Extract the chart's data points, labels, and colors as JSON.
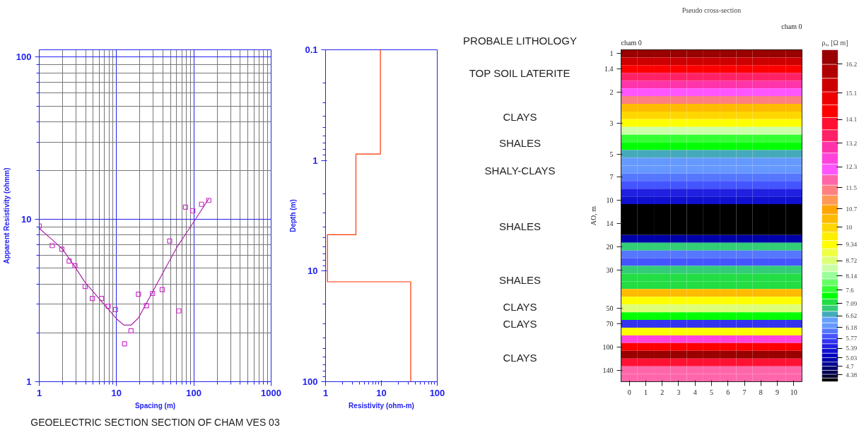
{
  "chart_data": [
    {
      "type": "scatter",
      "xlabel": "Spacing (m)",
      "ylabel": "Apparent Resistivity (ohmm)",
      "log": "xy",
      "xlim": [
        1,
        1000
      ],
      "ylim": [
        1,
        111
      ],
      "xticks": [
        1,
        10,
        100,
        1000
      ],
      "yticks": [
        1,
        10,
        100
      ],
      "grid": true,
      "annotations": [
        "GEOELECTRIC SECTION SECTION OF CHAM VES 03"
      ],
      "series": [
        {
          "type": "scatter",
          "marker": "square",
          "color": "#cc33cc",
          "x": [
            1,
            1.47,
            1.96,
            2.44,
            2.9,
            3.93,
            4.86,
            6.4,
            7.8,
            9.7,
            12.7,
            15.4,
            19.2,
            24.4,
            29.2,
            39,
            48.7,
            64,
            78,
            97,
            126,
            156
          ],
          "values": [
            9.1,
            6.9,
            6.56,
            5.54,
            5.18,
            3.86,
            3.26,
            3.26,
            2.92,
            2.78,
            1.71,
            2.06,
            3.46,
            2.94,
            3.5,
            3.69,
            7.35,
            2.73,
            11.9,
            11.3,
            12.4,
            13.1
          ]
        },
        {
          "type": "line",
          "color": "#aa22aa",
          "x": [
            1,
            1.47,
            2,
            2.9,
            3.9,
            10,
            12.5,
            15.4,
            19.2,
            36.5,
            60,
            78,
            99,
            156
          ],
          "values": [
            8.8,
            7.5,
            6.56,
            5.1,
            4.1,
            2.44,
            2.23,
            2.23,
            2.47,
            4.34,
            6.7,
            8.1,
            9.6,
            13.4
          ]
        }
      ]
    },
    {
      "type": "line",
      "xlabel": "Resistivity (ohm-m)",
      "ylabel": "Depth (m)",
      "log": "xy",
      "xlim": [
        1,
        100
      ],
      "ylim": [
        100,
        0.1
      ],
      "xticks": [
        1,
        10,
        100
      ],
      "yticks": [
        0.1,
        1,
        10,
        100
      ],
      "series": [
        {
          "color": "#ff3300",
          "x": [
            9.6,
            9.6,
            3.5,
            3.5,
            1.08,
            1.08,
            33.5,
            33.5
          ],
          "values": [
            0.1,
            0.875,
            0.875,
            4.7,
            4.7,
            12.5,
            12.5,
            100
          ]
        }
      ]
    },
    {
      "type": "heatmap",
      "title": "Pseudo cross-section",
      "ylabel": "AO, m",
      "clabel": "ρₐ, [Ω m]",
      "annotations": [
        "cham 0",
        "cham 0",
        "PROBALE LITHOLOGY",
        "TOP SOIL LATERITE",
        "CLAYS",
        "SHALES",
        "SHALY-CLAYS",
        "SHALES",
        "SHALES",
        "CLAYS",
        "CLAYS",
        "CLAYS"
      ],
      "categories": [
        "0",
        "1",
        "2",
        "3",
        "4",
        "5",
        "6",
        "7",
        "8",
        "9",
        "10"
      ],
      "y_categories": [
        "1",
        null,
        "1.4",
        null,
        null,
        "2",
        null,
        null,
        null,
        "3",
        null,
        null,
        null,
        "5",
        null,
        null,
        "7",
        null,
        null,
        "10",
        null,
        null,
        "14",
        null,
        null,
        "20",
        null,
        null,
        "30",
        null,
        null,
        null,
        null,
        "50",
        null,
        "70",
        null,
        null,
        "100",
        null,
        null,
        "140",
        null
      ],
      "cells": [
        [
          16.49,
          16.49,
          16.49,
          16.49,
          16.49,
          16.49,
          16.49,
          16.49,
          16.49,
          16.49,
          16.49
        ],
        [
          15.42,
          15.42,
          15.42,
          15.42,
          15.42,
          15.42,
          15.42,
          15.42,
          15.42,
          15.42,
          15.42
        ],
        [
          14.43,
          14.43,
          14.43,
          14.43,
          14.43,
          14.43,
          14.43,
          14.43,
          14.43,
          14.43,
          14.43
        ],
        [
          13.5,
          13.5,
          13.5,
          13.5,
          13.5,
          13.5,
          13.5,
          13.5,
          13.5,
          13.5,
          13.5
        ],
        [
          13.05,
          13.05,
          13.05,
          13.05,
          13.05,
          13.05,
          13.05,
          13.05,
          13.05,
          13.05,
          13.05
        ],
        [
          12.21,
          12.21,
          12.21,
          12.21,
          12.21,
          12.21,
          12.21,
          12.21,
          12.21,
          12.21,
          12.21
        ],
        [
          11.42,
          11.42,
          11.42,
          11.42,
          11.42,
          11.42,
          11.42,
          11.42,
          11.42,
          11.42,
          11.42
        ],
        [
          10.33,
          10.33,
          10.33,
          10.33,
          10.33,
          10.33,
          10.33,
          10.33,
          10.33,
          10.33,
          10.33
        ],
        [
          9.99,
          9.99,
          9.99,
          9.99,
          9.99,
          9.99,
          9.99,
          9.99,
          9.99,
          9.99,
          9.99
        ],
        [
          9.34,
          9.34,
          9.34,
          9.34,
          9.34,
          9.34,
          9.34,
          9.34,
          9.34,
          9.34,
          9.34
        ],
        [
          8.45,
          8.45,
          8.45,
          8.45,
          8.45,
          8.45,
          8.45,
          8.45,
          8.45,
          8.45,
          8.45
        ],
        [
          7.65,
          7.65,
          7.65,
          7.65,
          7.65,
          7.65,
          7.65,
          7.65,
          7.65,
          7.65,
          7.65
        ],
        [
          7.39,
          7.39,
          7.39,
          7.39,
          7.39,
          7.39,
          7.39,
          7.39,
          7.39,
          7.39,
          7.39
        ],
        [
          6.69,
          6.69,
          6.69,
          6.69,
          6.69,
          6.69,
          6.69,
          6.69,
          6.69,
          6.69,
          6.69
        ],
        [
          6.26,
          6.26,
          6.26,
          6.26,
          6.26,
          6.26,
          6.26,
          6.26,
          6.26,
          6.26,
          6.26
        ],
        [
          6.26,
          6.26,
          6.26,
          6.26,
          6.26,
          6.26,
          6.26,
          6.26,
          6.26,
          6.26,
          6.26
        ],
        [
          6.05,
          6.05,
          6.05,
          6.05,
          6.05,
          6.05,
          6.05,
          6.05,
          6.05,
          6.05,
          6.05
        ],
        [
          5.85,
          5.85,
          5.85,
          5.85,
          5.85,
          5.85,
          5.85,
          5.85,
          5.85,
          5.85,
          5.85
        ],
        [
          5.47,
          5.47,
          5.47,
          5.47,
          5.47,
          5.47,
          5.47,
          5.47,
          5.47,
          5.47,
          5.47
        ],
        [
          5.29,
          5.29,
          5.29,
          5.29,
          5.29,
          5.29,
          5.29,
          5.29,
          5.29,
          5.29,
          5.29
        ],
        [
          4.19,
          4.19,
          4.19,
          4.19,
          4.19,
          4.19,
          4.19,
          4.19,
          4.19,
          4.19,
          4.19
        ],
        [
          4.19,
          4.19,
          4.19,
          4.19,
          4.19,
          4.19,
          4.19,
          4.19,
          4.19,
          4.19,
          4.19
        ],
        [
          4.19,
          4.19,
          4.19,
          4.19,
          4.19,
          4.19,
          4.19,
          4.19,
          4.19,
          4.19,
          4.19
        ],
        [
          4.19,
          4.19,
          4.19,
          4.19,
          4.19,
          4.19,
          4.19,
          4.19,
          4.19,
          4.19,
          4.19
        ],
        [
          4.95,
          4.95,
          4.95,
          4.95,
          4.95,
          4.95,
          4.95,
          4.95,
          4.95,
          4.95,
          4.95
        ],
        [
          6.92,
          6.92,
          6.92,
          6.92,
          6.92,
          6.92,
          6.92,
          6.92,
          6.92,
          6.92,
          6.92
        ],
        [
          6.05,
          6.05,
          6.05,
          6.05,
          6.05,
          6.05,
          6.05,
          6.05,
          6.05,
          6.05,
          6.05
        ],
        [
          5.85,
          5.85,
          5.85,
          5.85,
          5.85,
          5.85,
          5.85,
          5.85,
          5.85,
          5.85,
          5.85
        ],
        [
          6.92,
          6.92,
          6.92,
          6.92,
          6.92,
          6.92,
          6.92,
          6.92,
          6.92,
          6.92,
          6.92
        ],
        [
          7.15,
          7.15,
          7.15,
          7.15,
          7.15,
          7.15,
          7.15,
          7.15,
          7.15,
          7.15,
          7.15
        ],
        [
          7.15,
          7.15,
          7.15,
          7.15,
          7.15,
          7.15,
          7.15,
          7.15,
          7.15,
          7.15,
          7.15
        ],
        [
          10.33,
          10.33,
          10.33,
          10.33,
          10.33,
          10.33,
          10.33,
          10.33,
          10.33,
          10.33,
          10.33
        ],
        [
          9.34,
          9.34,
          9.34,
          9.34,
          9.34,
          9.34,
          9.34,
          9.34,
          9.34,
          9.34,
          9.34
        ],
        [
          8.74,
          8.74,
          8.74,
          8.74,
          8.74,
          8.74,
          8.74,
          8.74,
          8.74,
          8.74,
          8.74
        ],
        [
          7.39,
          7.39,
          7.39,
          7.39,
          7.39,
          7.39,
          7.39,
          7.39,
          7.39,
          7.39,
          7.39
        ],
        [
          5.66,
          5.66,
          5.66,
          5.66,
          5.66,
          5.66,
          5.66,
          5.66,
          5.66,
          5.66,
          5.66
        ],
        [
          9.34,
          9.34,
          9.34,
          9.34,
          9.34,
          9.34,
          9.34,
          9.34,
          9.34,
          9.34,
          9.34
        ],
        [
          12.62,
          12.62,
          12.62,
          12.62,
          12.62,
          12.62,
          12.62,
          12.62,
          12.62,
          12.62,
          12.62
        ],
        [
          14.43,
          14.43,
          14.43,
          14.43,
          14.43,
          14.43,
          14.43,
          14.43,
          14.43,
          14.43,
          14.43
        ],
        [
          16.49,
          16.49,
          16.49,
          16.49,
          16.49,
          16.49,
          16.49,
          16.49,
          16.49,
          16.49,
          16.49
        ],
        [
          13.95,
          13.95,
          13.95,
          13.95,
          13.95,
          13.95,
          13.95,
          13.95,
          13.95,
          13.95,
          13.95
        ],
        [
          11.81,
          11.81,
          11.81,
          11.81,
          11.81,
          11.81,
          11.81,
          11.81,
          11.81,
          11.81,
          11.81
        ],
        [
          11.81,
          11.81,
          11.81,
          11.81,
          11.81,
          11.81,
          11.81,
          11.81,
          11.81,
          11.81,
          11.81
        ]
      ],
      "clim": [
        4.12,
        16.75
      ],
      "cticks": [
        4.38,
        4.7,
        5.03,
        5.39,
        5.77,
        6.18,
        6.62,
        7.09,
        7.6,
        8.14,
        8.72,
        9.34,
        10,
        10.7,
        11.5,
        12.3,
        13.2,
        14.1,
        15.1,
        16.2
      ],
      "colors": [
        "#000000",
        "#000030",
        "#000055",
        "#00006a",
        "#000090",
        "#0000a8",
        "#0000c0",
        "#1010d0",
        "#2020e0",
        "#3333f0",
        "#4455ff",
        "#5577ff",
        "#6699ff",
        "#66a0ff",
        "#44aabb",
        "#33cc77",
        "#22dd44",
        "#00ff00",
        "#33ff33",
        "#66ff66",
        "#99ff99",
        "#ccffaa",
        "#ddff77",
        "#eeff44",
        "#ffff00",
        "#ffee00",
        "#ffd700",
        "#ffbb00",
        "#ffa500",
        "#ff9955",
        "#ff8080",
        "#ff66aa",
        "#ff55ff",
        "#ff44dd",
        "#ff33aa",
        "#ff2266",
        "#ff1133",
        "#ff0000",
        "#ee0000",
        "#cc0000",
        "#b00000",
        "#990000"
      ]
    }
  ]
}
